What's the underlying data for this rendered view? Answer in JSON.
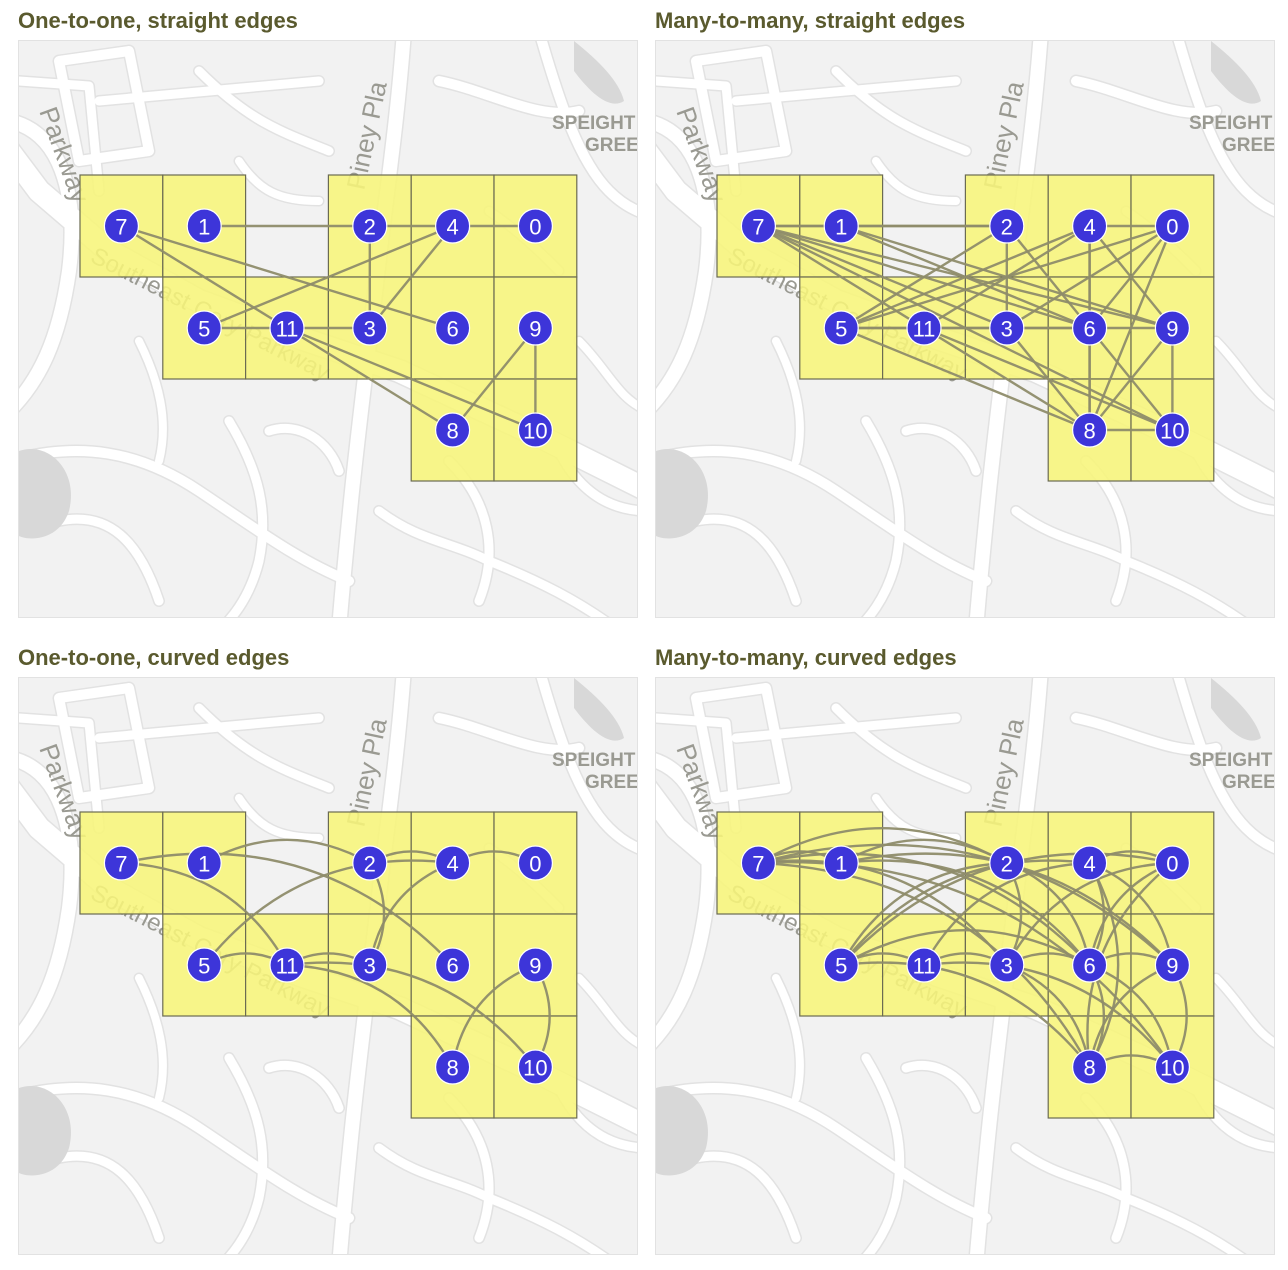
{
  "panels": [
    {
      "title": "One-to-one, straight edges",
      "edge_style": "straight",
      "mode": "one-to-one"
    },
    {
      "title": "Many-to-many, straight edges",
      "edge_style": "straight",
      "mode": "many-to-many"
    },
    {
      "title": "One-to-one, curved edges",
      "edge_style": "curved",
      "mode": "one-to-one"
    },
    {
      "title": "Many-to-many, curved edges",
      "edge_style": "curved",
      "mode": "many-to-many"
    }
  ],
  "map_labels": {
    "parkway": "Parkway",
    "piney": "Piney Pla",
    "speight_1": "SPEIGHT",
    "speight_2": "GREE",
    "southeast_cary": "Southeast Cary Parkway"
  },
  "colors": {
    "cell_fill": "#f7f57a",
    "cell_stroke": "#6b6b52",
    "node_fill": "#3d35d9",
    "node_label": "#ffffff",
    "edge": "#8e8c6a",
    "map_background": "#f2f2f2",
    "road": "#ffffff",
    "title": "#5a5a2e"
  },
  "grid": {
    "columns": 6,
    "rows": 3,
    "cells": [
      [
        0,
        0
      ],
      [
        1,
        0
      ],
      [
        3,
        0
      ],
      [
        4,
        0
      ],
      [
        5,
        0
      ],
      [
        1,
        1
      ],
      [
        2,
        1
      ],
      [
        3,
        1
      ],
      [
        4,
        1
      ],
      [
        5,
        1
      ],
      [
        4,
        2
      ],
      [
        5,
        2
      ]
    ]
  },
  "nodes": [
    {
      "id": "0",
      "label": "0",
      "col": 5,
      "row": 0
    },
    {
      "id": "1",
      "label": "1",
      "col": 1,
      "row": 0
    },
    {
      "id": "2",
      "label": "2",
      "col": 3,
      "row": 0
    },
    {
      "id": "3",
      "label": "3",
      "col": 3,
      "row": 1
    },
    {
      "id": "4",
      "label": "4",
      "col": 4,
      "row": 0
    },
    {
      "id": "5",
      "label": "5",
      "col": 1,
      "row": 1
    },
    {
      "id": "6",
      "label": "6",
      "col": 4,
      "row": 1
    },
    {
      "id": "7",
      "label": "7",
      "col": 0,
      "row": 0
    },
    {
      "id": "8",
      "label": "8",
      "col": 4,
      "row": 2
    },
    {
      "id": "9",
      "label": "9",
      "col": 5,
      "row": 1
    },
    {
      "id": "10",
      "label": "10",
      "col": 5,
      "row": 2
    },
    {
      "id": "11",
      "label": "11",
      "col": 2,
      "row": 1
    }
  ],
  "edges_one_to_one": [
    [
      "1",
      "2"
    ],
    [
      "2",
      "4"
    ],
    [
      "4",
      "0"
    ],
    [
      "2",
      "3"
    ],
    [
      "3",
      "4"
    ],
    [
      "4",
      "5"
    ],
    [
      "5",
      "11"
    ],
    [
      "11",
      "3"
    ],
    [
      "7",
      "6"
    ],
    [
      "7",
      "11"
    ],
    [
      "11",
      "8"
    ],
    [
      "11",
      "10"
    ],
    [
      "9",
      "8"
    ],
    [
      "9",
      "10"
    ]
  ],
  "edges_many_to_many": [
    [
      "7",
      "1"
    ],
    [
      "7",
      "2"
    ],
    [
      "7",
      "3"
    ],
    [
      "7",
      "6"
    ],
    [
      "7",
      "9"
    ],
    [
      "7",
      "8"
    ],
    [
      "7",
      "10"
    ],
    [
      "1",
      "2"
    ],
    [
      "1",
      "9"
    ],
    [
      "1",
      "6"
    ],
    [
      "2",
      "6"
    ],
    [
      "2",
      "3"
    ],
    [
      "2",
      "5"
    ],
    [
      "4",
      "0"
    ],
    [
      "4",
      "5"
    ],
    [
      "4",
      "11"
    ],
    [
      "4",
      "6"
    ],
    [
      "4",
      "9"
    ],
    [
      "4",
      "8"
    ],
    [
      "0",
      "5"
    ],
    [
      "0",
      "3"
    ],
    [
      "0",
      "8"
    ],
    [
      "0",
      "6"
    ],
    [
      "5",
      "11"
    ],
    [
      "5",
      "6"
    ],
    [
      "5",
      "8"
    ],
    [
      "11",
      "3"
    ],
    [
      "11",
      "10"
    ],
    [
      "3",
      "6"
    ],
    [
      "3",
      "8"
    ],
    [
      "6",
      "9"
    ],
    [
      "6",
      "8"
    ],
    [
      "6",
      "10"
    ],
    [
      "9",
      "8"
    ],
    [
      "9",
      "10"
    ],
    [
      "8",
      "10"
    ]
  ]
}
